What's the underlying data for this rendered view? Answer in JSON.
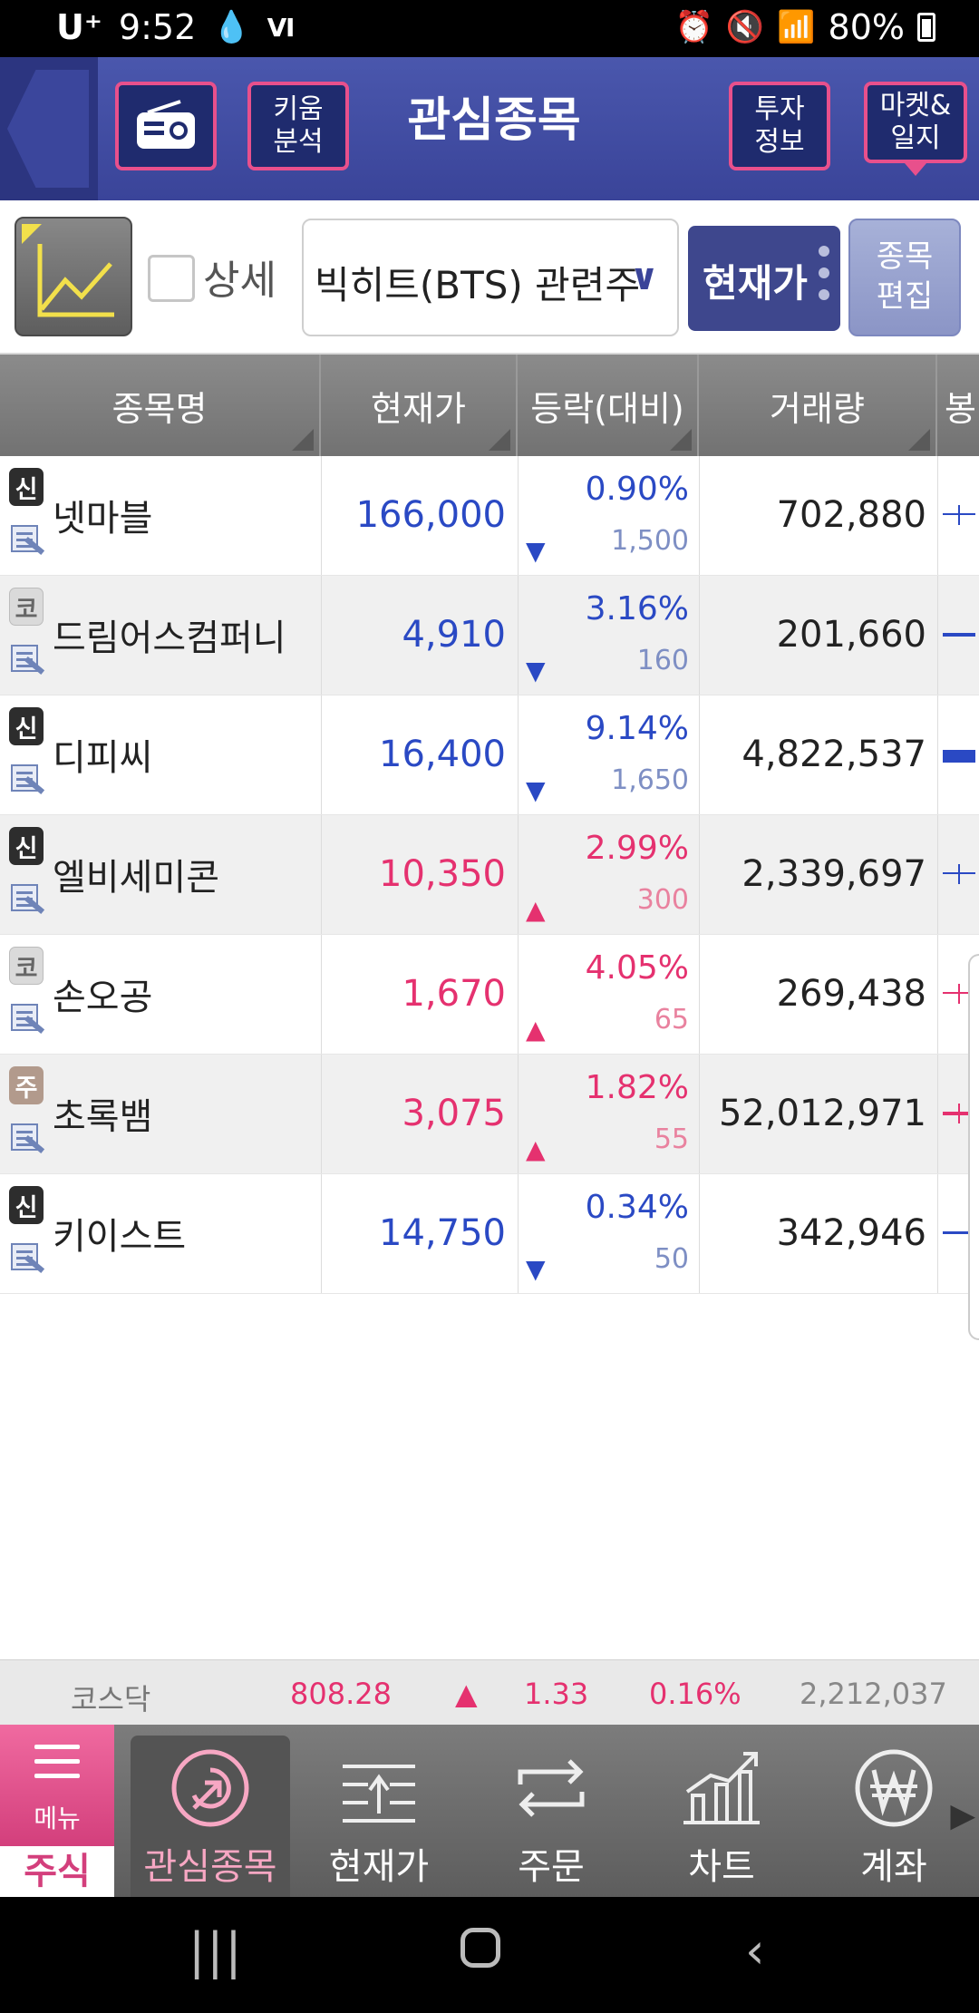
{
  "status_bar": {
    "carrier": "U⁺",
    "time": "9:52",
    "battery": "80%"
  },
  "header": {
    "title": "관심종목",
    "kiwoom_analysis": "키움\n분석",
    "invest_info": "투자\n정보",
    "market_diary": "마켓&\n일지"
  },
  "toolbar": {
    "detail_label": "상세",
    "group_name": "빅히트(BTS) 관련주",
    "view_mode": "현재가",
    "edit_label": "종목\n편집"
  },
  "table": {
    "columns": [
      "종목명",
      "현재가",
      "등락(대비)",
      "거래량",
      "봉"
    ],
    "rows": [
      {
        "market": "신",
        "name": "넷마블",
        "price": "166,000",
        "pct": "0.90%",
        "diff": "1,500",
        "volume": "702,880",
        "direction": "down"
      },
      {
        "market": "코",
        "name": "드림어스컴퍼니",
        "price": "4,910",
        "pct": "3.16%",
        "diff": "160",
        "volume": "201,660",
        "direction": "down"
      },
      {
        "market": "신",
        "name": "디피씨",
        "price": "16,400",
        "pct": "9.14%",
        "diff": "1,650",
        "volume": "4,822,537",
        "direction": "down"
      },
      {
        "market": "신",
        "name": "엘비세미콘",
        "price": "10,350",
        "pct": "2.99%",
        "diff": "300",
        "volume": "2,339,697",
        "direction": "up"
      },
      {
        "market": "코",
        "name": "손오공",
        "price": "1,670",
        "pct": "4.05%",
        "diff": "65",
        "volume": "269,438",
        "direction": "up"
      },
      {
        "market": "주",
        "name": "초록뱀",
        "price": "3,075",
        "pct": "1.82%",
        "diff": "55",
        "volume": "52,012,971",
        "direction": "up"
      },
      {
        "market": "신",
        "name": "키이스트",
        "price": "14,750",
        "pct": "0.34%",
        "diff": "50",
        "volume": "342,946",
        "direction": "down"
      }
    ]
  },
  "index_bar": {
    "name": "코스닥",
    "value": "808.28",
    "change": "1.33",
    "pct": "0.16%",
    "volume": "2,212,037"
  },
  "bottom_nav": {
    "menu_label": "메뉴",
    "stock_tab": "주식",
    "items": [
      "관심종목",
      "현재가",
      "주문",
      "차트",
      "계좌"
    ]
  },
  "colors": {
    "up": "#e5316f",
    "down": "#2a49c4",
    "header": "#3a4499",
    "accent": "#e8508c"
  },
  "icons": [
    "radio-icon",
    "chart-icon",
    "chevron-down-icon",
    "news-icon",
    "menu-icon",
    "watchlist-icon",
    "price-icon",
    "order-icon",
    "chart-nav-icon",
    "account-won-icon"
  ]
}
